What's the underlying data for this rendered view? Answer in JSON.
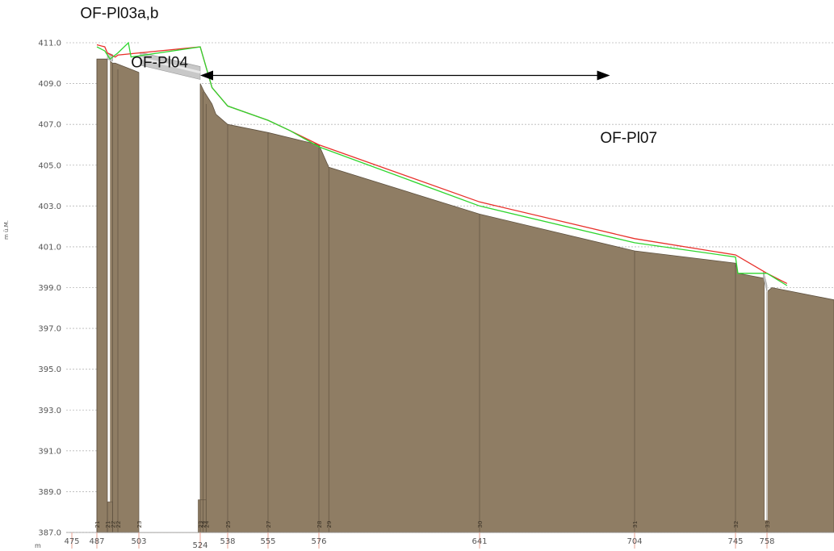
{
  "chart_data": {
    "type": "area",
    "title": "",
    "xlabel": "",
    "ylabel": "m ü.M.",
    "x_unit": "m",
    "ylim": [
      387.0,
      411.0
    ],
    "yticks": [
      "411.0",
      "409.0",
      "407.0",
      "405.0",
      "403.0",
      "401.0",
      "399.0",
      "397.0",
      "395.0",
      "393.0",
      "391.0",
      "389.0",
      "387.0"
    ],
    "xticks": [
      475,
      487,
      503,
      524,
      538,
      555,
      576,
      641,
      704,
      745,
      758
    ],
    "grid": true,
    "colors": {
      "terrain": "#8f7d64",
      "red_line": "#e8302a",
      "green_line": "#2fd62f",
      "grid": "#b8b8b8",
      "pipe": "#c8c8c8",
      "arrow": "#000000"
    },
    "series": [
      {
        "role": "terrain_profile",
        "color": "#8f7d64",
        "x": [
          487,
          491,
          491,
          492,
          492,
          493,
          494,
          500,
          503,
          524,
          526,
          530,
          532,
          538,
          555,
          576,
          580,
          641,
          704,
          745,
          746,
          757,
          757,
          758,
          760
        ],
        "y": [
          410.2,
          410.2,
          410.1,
          410.1,
          410.1,
          410.0,
          410.0,
          409.7,
          409.55,
          409.0,
          408.6,
          408.0,
          407.5,
          407.0,
          406.6,
          406.0,
          404.9,
          402.6,
          400.8,
          400.2,
          399.7,
          399.45,
          387.6,
          398.8,
          399.0
        ]
      },
      {
        "role": "red_line",
        "color": "#e8302a",
        "x": [
          487,
          490,
          491,
          494,
          495,
          524,
          530,
          538,
          555,
          564,
          576,
          641,
          704,
          745,
          758,
          766
        ],
        "y": [
          410.9,
          410.8,
          410.5,
          410.3,
          410.4,
          410.8,
          408.8,
          407.9,
          407.2,
          406.7,
          406.0,
          403.2,
          401.4,
          400.6,
          399.7,
          399.2
        ]
      },
      {
        "role": "green_line",
        "color": "#2fd62f",
        "x": [
          487,
          490,
          492,
          495,
          499,
          500,
          524,
          530,
          538,
          555,
          564,
          576,
          641,
          704,
          745,
          746,
          758,
          766
        ],
        "y": [
          410.8,
          410.6,
          410.2,
          410.5,
          411.0,
          410.3,
          410.8,
          408.8,
          407.9,
          407.2,
          406.7,
          405.9,
          403.0,
          401.2,
          400.5,
          399.7,
          399.7,
          399.1
        ]
      }
    ],
    "pipes": [
      {
        "x_from": 491,
        "x_to": 493,
        "y_from": 410.2,
        "y_to": 410.1
      },
      {
        "x_from": 503.5,
        "x_to": 524,
        "y_from": 409.9,
        "y_to": 409.2
      },
      {
        "x_from": 756.5,
        "x_to": 758,
        "y_from": 399.5,
        "y_to": 398.8
      }
    ],
    "arrow": {
      "x_from": 524,
      "x_to": 694,
      "y": 409.4
    },
    "annotations": [
      {
        "text": "OF-Pl03a,b",
        "x": 479,
        "y": 412.2
      },
      {
        "text": "OF-Pl04",
        "x": 500,
        "y": 409.8
      },
      {
        "text": "OF-Pl07",
        "x": 690,
        "y": 406.1
      }
    ],
    "node_labels": [
      {
        "x": 487,
        "text": "21"
      },
      {
        "x": 491,
        "text": "21"
      },
      {
        "x": 493,
        "text": "22"
      },
      {
        "x": 495,
        "text": "22"
      },
      {
        "x": 503,
        "text": "23"
      },
      {
        "x": 524,
        "text": "23"
      },
      {
        "x": 525.5,
        "text": "24"
      },
      {
        "x": 527,
        "text": "24"
      },
      {
        "x": 538,
        "text": "25"
      },
      {
        "x": 555,
        "text": "27"
      },
      {
        "x": 576,
        "text": "28"
      },
      {
        "x": 580,
        "text": "29"
      },
      {
        "x": 641,
        "text": "30"
      },
      {
        "x": 704,
        "text": "31"
      },
      {
        "x": 745,
        "text": "32"
      },
      {
        "x": 758,
        "text": "33"
      }
    ]
  }
}
